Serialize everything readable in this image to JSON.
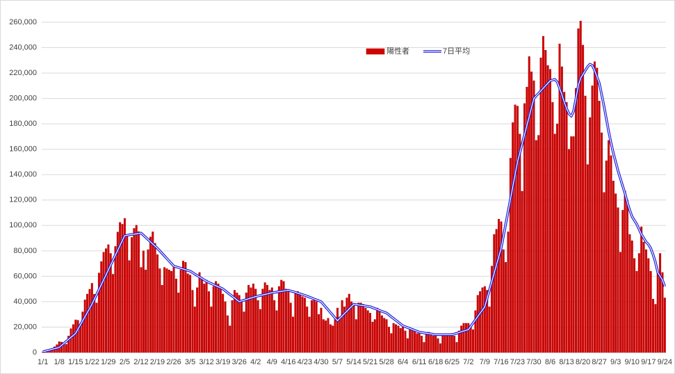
{
  "chart_data": {
    "type": "bar",
    "grid": true,
    "legend": "top",
    "ylim": [
      0,
      260000
    ],
    "yticks": [
      0,
      {
        "value": 20000,
        "label": "20,000"
      },
      {
        "value": 40000,
        "label": "40,000"
      },
      {
        "value": 60000,
        "label": "60,000"
      },
      {
        "value": 80000,
        "label": "80,000"
      },
      {
        "value": 100000,
        "label": "100,000"
      },
      {
        "value": 120000,
        "label": "120,000"
      },
      {
        "value": 140000,
        "label": "140,000"
      },
      {
        "value": 160000,
        "label": "160,000"
      },
      {
        "value": 180000,
        "label": "180,000"
      },
      {
        "value": 200000,
        "label": "200,000"
      },
      {
        "value": 220000,
        "label": "220,000"
      },
      {
        "value": 240000,
        "label": "240,000"
      },
      {
        "value": 260000,
        "label": "260,000"
      }
    ],
    "categories": [
      "1/1",
      null,
      null,
      null,
      null,
      null,
      null,
      "1/8",
      null,
      null,
      null,
      null,
      null,
      null,
      "1/15",
      null,
      null,
      null,
      null,
      null,
      null,
      "1/22",
      null,
      null,
      null,
      null,
      null,
      null,
      "1/29",
      null,
      null,
      null,
      null,
      null,
      null,
      "2/5",
      null,
      null,
      null,
      null,
      null,
      null,
      "2/12",
      null,
      null,
      null,
      null,
      null,
      null,
      "2/19",
      null,
      null,
      null,
      null,
      null,
      null,
      "2/26",
      null,
      null,
      null,
      null,
      null,
      null,
      "3/5",
      null,
      null,
      null,
      null,
      null,
      null,
      "3/12",
      null,
      null,
      null,
      null,
      null,
      null,
      "3/19",
      null,
      null,
      null,
      null,
      null,
      null,
      "3/26",
      null,
      null,
      null,
      null,
      null,
      null,
      "4/2",
      null,
      null,
      null,
      null,
      null,
      null,
      "4/9",
      null,
      null,
      null,
      null,
      null,
      null,
      "4/16",
      null,
      null,
      null,
      null,
      null,
      null,
      "4/23",
      null,
      null,
      null,
      null,
      null,
      null,
      "4/30",
      null,
      null,
      null,
      null,
      null,
      null,
      "5/7",
      null,
      null,
      null,
      null,
      null,
      null,
      "5/14",
      null,
      null,
      null,
      null,
      null,
      null,
      "5/21",
      null,
      null,
      null,
      null,
      null,
      null,
      "5/28",
      null,
      null,
      null,
      null,
      null,
      null,
      "6/4",
      null,
      null,
      null,
      null,
      null,
      null,
      "6/11",
      null,
      null,
      null,
      null,
      null,
      null,
      "6/18",
      null,
      null,
      null,
      null,
      null,
      null,
      "6/25",
      null,
      null,
      null,
      null,
      null,
      null,
      "7/2",
      null,
      null,
      null,
      null,
      null,
      null,
      "7/9",
      null,
      null,
      null,
      null,
      null,
      null,
      "7/16",
      null,
      null,
      null,
      null,
      null,
      null,
      "7/23",
      null,
      null,
      null,
      null,
      null,
      null,
      "7/30",
      null,
      null,
      null,
      null,
      null,
      null,
      "8/6",
      null,
      null,
      null,
      null,
      null,
      null,
      "8/13",
      null,
      null,
      null,
      null,
      null,
      null,
      "8/20",
      null,
      null,
      null,
      null,
      null,
      null,
      "8/27",
      null,
      null,
      null,
      null,
      null,
      null,
      "9/3",
      null,
      null,
      null,
      null,
      null,
      null,
      "9/10",
      null,
      null,
      null,
      null,
      null,
      null,
      "9/17",
      null,
      null,
      null,
      null,
      null,
      null,
      "9/24"
    ],
    "series": [
      {
        "name": "陽性者",
        "color": "#d40000",
        "values": [
          500,
          550,
          800,
          1300,
          2600,
          4500,
          6200,
          8500,
          8200,
          6400,
          6400,
          13000,
          18800,
          22000,
          25700,
          25400,
          22000,
          32000,
          41500,
          46000,
          49800,
          54500,
          45900,
          39000,
          62600,
          71600,
          78900,
          81800,
          84900,
          78000,
          61600,
          83500,
          94800,
          102400,
          101000,
          105600,
          91600,
          72400,
          90600,
          97700,
          100200,
          95200,
          67000,
          80000,
          65000,
          81000,
          91000,
          95000,
          86000,
          77000,
          66000,
          53000,
          67000,
          66000,
          65000,
          64000,
          67000,
          58000,
          47000,
          65000,
          72000,
          71000,
          62000,
          61000,
          49000,
          36000,
          51000,
          63000,
          59000,
          54000,
          57000,
          48000,
          36000,
          52000,
          56000,
          54000,
          50000,
          46000,
          40000,
          29000,
          21000,
          41000,
          49000,
          47000,
          45000,
          40000,
          32000,
          47000,
          53000,
          51000,
          54000,
          50000,
          41000,
          34000,
          50000,
          55000,
          53000,
          49000,
          51000,
          41000,
          33000,
          52000,
          57000,
          56000,
          50000,
          49000,
          39000,
          28000,
          47000,
          48000,
          47000,
          44000,
          43000,
          36000,
          28000,
          41000,
          42000,
          40000,
          30000,
          35000,
          26000,
          25000,
          27000,
          22000,
          21000,
          26000,
          35000,
          28000,
          41000,
          36000,
          43000,
          46000,
          40000,
          38000,
          26000,
          39000,
          39000,
          38000,
          35000,
          33000,
          31000,
          24000,
          26000,
          35000,
          33000,
          29000,
          27000,
          26000,
          20000,
          15000,
          23000,
          22000,
          21000,
          19000,
          20000,
          17000,
          11000,
          18000,
          19000,
          17000,
          15000,
          15000,
          13000,
          8000,
          15000,
          16000,
          14000,
          13000,
          13000,
          11000,
          7000,
          13000,
          14000,
          13000,
          13000,
          15000,
          13000,
          8000,
          17000,
          21000,
          23000,
          23000,
          23000,
          20000,
          18000,
          33000,
          45000,
          48000,
          51000,
          52000,
          49000,
          36000,
          68000,
          93000,
          97000,
          105000,
          103000,
          81000,
          71000,
          95000,
          153000,
          181000,
          195000,
          194000,
          172000,
          127000,
          196000,
          209000,
          233000,
          221000,
          214000,
          167000,
          171000,
          232000,
          249000,
          238000,
          226000,
          223000,
          197000,
          172000,
          180000,
          243000,
          225000,
          205000,
          197000,
          160000,
          170000,
          170000,
          208000,
          255000,
          261000,
          242000,
          202000,
          148000,
          185000,
          210000,
          229000,
          224000,
          198000,
          173000,
          126000,
          151000,
          167000,
          155000,
          135000,
          125000,
          114000,
          79000,
          112000,
          127000,
          120000,
          93000,
          88000,
          74000,
          64000,
          78000,
          99000,
          87000,
          81000,
          74000,
          64000,
          42000,
          38000,
          63000,
          78000,
          63000,
          43000
        ]
      },
      {
        "name": "7日平均",
        "color": "#1c1cd8",
        "type": "line",
        "values": [
          500,
          1000,
          1500,
          2000,
          2500,
          3000,
          3500,
          4000,
          5600,
          7100,
          8700,
          10300,
          11900,
          13400,
          15000,
          18300,
          21600,
          24900,
          28100,
          31400,
          34700,
          38000,
          41900,
          45700,
          49600,
          53400,
          57300,
          61100,
          65000,
          68900,
          72700,
          76600,
          80400,
          84300,
          88100,
          92000,
          92300,
          92600,
          92900,
          93100,
          93400,
          93700,
          94000,
          92300,
          90600,
          88900,
          87100,
          85400,
          83700,
          82000,
          80000,
          78000,
          76000,
          74000,
          72000,
          70000,
          68000,
          67400,
          66900,
          66300,
          65700,
          65100,
          64600,
          64000,
          62900,
          61700,
          60600,
          59400,
          58300,
          57100,
          56000,
          55100,
          54300,
          53400,
          52600,
          51700,
          50900,
          50000,
          48600,
          47100,
          45700,
          44300,
          42900,
          41400,
          40000,
          40600,
          41100,
          41700,
          42300,
          42900,
          43400,
          44000,
          44400,
          44900,
          45300,
          45700,
          46100,
          46600,
          47000,
          47300,
          47600,
          47900,
          48100,
          48400,
          48700,
          49000,
          48400,
          47900,
          47300,
          46700,
          46100,
          45600,
          45000,
          44300,
          43600,
          42900,
          42100,
          41400,
          40700,
          40000,
          37900,
          35700,
          33600,
          31400,
          29300,
          27100,
          25000,
          26900,
          28700,
          30600,
          32400,
          34300,
          36100,
          38000,
          37700,
          37400,
          37100,
          36900,
          36600,
          36300,
          36000,
          35300,
          34600,
          33900,
          33100,
          32400,
          31700,
          31000,
          29600,
          28100,
          26700,
          25300,
          23900,
          22400,
          21000,
          20300,
          19600,
          18900,
          18100,
          17400,
          16700,
          16000,
          15700,
          15400,
          15100,
          14900,
          14600,
          14300,
          14000,
          14000,
          14000,
          14000,
          14000,
          14000,
          14000,
          14000,
          14600,
          15100,
          15700,
          16300,
          16900,
          17400,
          18000,
          20600,
          23100,
          25700,
          28300,
          30900,
          33400,
          36000,
          42600,
          49100,
          55700,
          62300,
          68900,
          75400,
          82000,
          91700,
          101400,
          111100,
          120900,
          130600,
          140300,
          150000,
          157100,
          164300,
          171400,
          178600,
          185700,
          192900,
          200000,
          202000,
          204000,
          206000,
          208000,
          210000,
          212000,
          214000,
          214500,
          215000,
          213000,
          208000,
          203000,
          197000,
          192000,
          188000,
          186000,
          190000,
          200000,
          210000,
          216000,
          219000,
          222000,
          225000,
          227000,
          226000,
          222000,
          217000,
          212000,
          203000,
          194000,
          184000,
          174000,
          165000,
          157000,
          150000,
          143000,
          137000,
          131000,
          125000,
          118000,
          112000,
          107000,
          104000,
          101000,
          97000,
          93000,
          90000,
          87000,
          85000,
          82000,
          77000,
          71000,
          63000,
          60000,
          57000,
          52000
        ]
      }
    ]
  }
}
